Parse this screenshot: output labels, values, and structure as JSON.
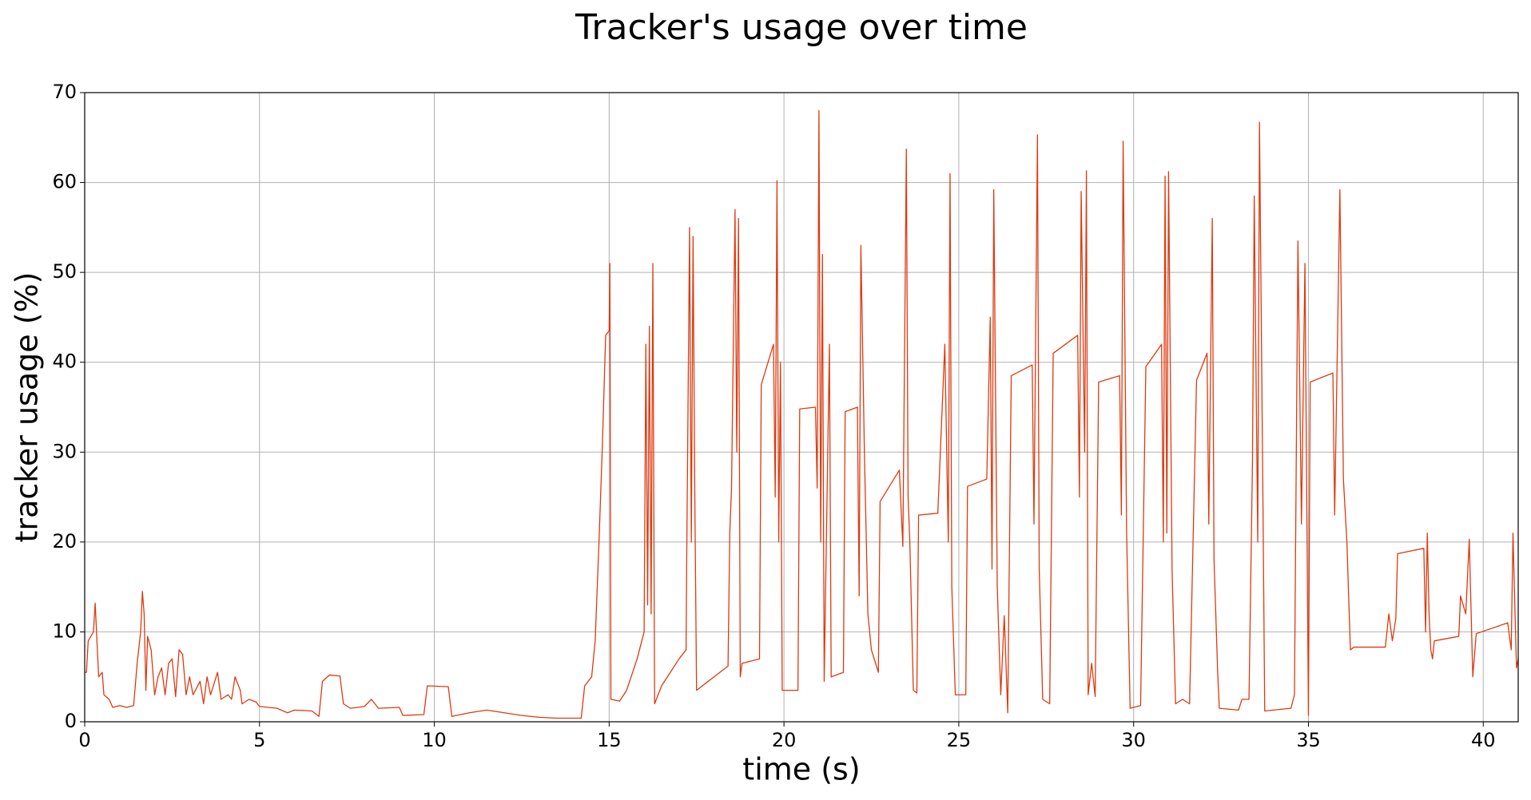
{
  "chart_data": {
    "type": "line",
    "title": "Tracker's usage over time",
    "x_label": "time (s)",
    "y_label": "tracker usage (%)",
    "color": "#dc3a10",
    "grid": true,
    "xlim": [
      0,
      41
    ],
    "ylim": [
      0,
      70
    ],
    "xticks": [
      0,
      5,
      10,
      15,
      20,
      25,
      30,
      35,
      40
    ],
    "yticks": [
      0,
      10,
      20,
      30,
      40,
      50,
      60,
      70
    ],
    "x": [
      0,
      0.05,
      0.1,
      0.25,
      0.3,
      0.35,
      0.4,
      0.5,
      0.55,
      0.7,
      0.8,
      1.0,
      1.2,
      1.4,
      1.5,
      1.6,
      1.65,
      1.7,
      1.75,
      1.8,
      1.9,
      2.0,
      2.1,
      2.2,
      2.3,
      2.4,
      2.5,
      2.6,
      2.7,
      2.8,
      2.9,
      3.0,
      3.1,
      3.3,
      3.4,
      3.5,
      3.6,
      3.8,
      3.9,
      4.1,
      4.2,
      4.3,
      4.45,
      4.5,
      4.7,
      4.9,
      5.0,
      5.5,
      5.8,
      6.0,
      6.5,
      6.7,
      6.8,
      7.0,
      7.3,
      7.4,
      7.6,
      8.0,
      8.2,
      8.4,
      9.0,
      9.1,
      9.7,
      9.8,
      10.4,
      10.5,
      11.0,
      11.5,
      12.0,
      12.5,
      13.0,
      13.5,
      14.2,
      14.3,
      14.5,
      14.6,
      14.7,
      14.8,
      14.9,
      15.0,
      15.02,
      15.05,
      15.3,
      15.5,
      15.8,
      16.0,
      16.05,
      16.1,
      16.15,
      16.2,
      16.25,
      16.3,
      16.5,
      17.0,
      17.2,
      17.22,
      17.3,
      17.35,
      17.4,
      17.45,
      17.5,
      18.0,
      18.4,
      18.45,
      18.5,
      18.6,
      18.65,
      18.7,
      18.75,
      18.8,
      19.3,
      19.35,
      19.7,
      19.75,
      19.8,
      19.85,
      19.9,
      19.95,
      20.4,
      20.45,
      20.9,
      20.95,
      21.0,
      21.05,
      21.1,
      21.15,
      21.3,
      21.35,
      21.7,
      21.75,
      22.1,
      22.15,
      22.2,
      22.3,
      22.4,
      22.5,
      22.7,
      22.75,
      23.3,
      23.4,
      23.5,
      23.55,
      23.6,
      23.7,
      23.8,
      23.85,
      24.4,
      24.6,
      24.7,
      24.75,
      24.8,
      24.9,
      25.2,
      25.25,
      25.8,
      25.9,
      25.95,
      26.0,
      26.1,
      26.2,
      26.3,
      26.4,
      26.5,
      27.1,
      27.15,
      27.25,
      27.3,
      27.4,
      27.6,
      27.7,
      28.4,
      28.45,
      28.5,
      28.6,
      28.65,
      28.7,
      28.8,
      28.9,
      29.0,
      29.6,
      29.65,
      29.7,
      29.8,
      29.9,
      30.2,
      30.35,
      30.8,
      30.85,
      30.9,
      30.95,
      31.0,
      31.1,
      31.2,
      31.4,
      31.6,
      31.8,
      32.1,
      32.15,
      32.25,
      32.3,
      32.4,
      32.45,
      33.0,
      33.1,
      33.3,
      33.4,
      33.45,
      33.55,
      33.6,
      33.7,
      33.75,
      34.5,
      34.6,
      34.7,
      34.8,
      34.9,
      35.0,
      35.05,
      35.7,
      35.75,
      35.9,
      36.0,
      36.1,
      36.2,
      36.3,
      37.2,
      37.3,
      37.4,
      37.5,
      37.55,
      38.3,
      38.35,
      38.4,
      38.45,
      38.5,
      38.55,
      38.6,
      39.3,
      39.35,
      39.5,
      39.6,
      39.7,
      39.8,
      40.7,
      40.8,
      40.85,
      40.95,
      41.0
    ],
    "values": [
      5.5,
      5.5,
      9,
      10,
      13.2,
      9,
      5,
      5.5,
      3,
      2.5,
      1.6,
      1.8,
      1.6,
      1.8,
      6.5,
      10,
      14.5,
      12,
      3.5,
      9.5,
      8,
      3,
      5,
      6,
      3,
      6.5,
      7,
      2.8,
      8,
      7.5,
      3,
      5,
      3,
      4.5,
      2,
      5,
      3,
      5.5,
      2.5,
      3,
      2.5,
      5,
      3.5,
      2,
      2.5,
      2.2,
      1.7,
      1.5,
      1.0,
      1.3,
      1.2,
      0.6,
      4.5,
      5.2,
      5.1,
      2,
      1.5,
      1.7,
      2.5,
      1.5,
      1.6,
      0.7,
      0.8,
      4,
      3.9,
      0.6,
      1.0,
      1.3,
      1.0,
      0.7,
      0.5,
      0.4,
      0.4,
      4,
      5,
      9,
      19,
      30,
      43,
      43.5,
      51,
      2.5,
      2.3,
      3.5,
      7,
      10,
      42,
      13,
      44,
      12,
      51,
      2,
      4,
      7,
      8,
      19,
      55,
      20,
      54,
      25,
      3.5,
      5,
      6.2,
      21,
      26,
      57,
      30,
      56,
      5,
      6.5,
      7,
      37.5,
      42,
      25,
      60.2,
      20,
      40,
      3.5,
      3.5,
      34.8,
      35,
      26,
      68,
      20,
      52,
      4.5,
      42,
      5,
      5.5,
      34.5,
      35,
      14,
      53,
      30,
      12,
      8,
      5.5,
      24.5,
      28,
      19.5,
      63.7,
      25,
      20,
      3.5,
      3.2,
      23,
      23.2,
      42,
      20,
      61,
      15,
      3,
      3,
      26.2,
      27,
      45,
      17,
      59.2,
      15,
      3,
      11.8,
      1,
      38.5,
      39.7,
      22,
      65.3,
      17,
      2.5,
      2,
      41,
      43,
      25,
      59,
      30,
      61.3,
      3,
      6.5,
      2.8,
      37.8,
      38.5,
      23,
      64.6,
      21,
      1.5,
      1.8,
      39.5,
      42,
      20,
      60.7,
      21,
      61.2,
      17,
      2,
      2.5,
      2,
      38,
      41,
      22,
      56,
      18,
      6,
      1.5,
      1.3,
      2.5,
      2.5,
      29,
      58.5,
      20,
      66.7,
      24,
      1.2,
      1.5,
      3,
      53.5,
      22,
      51,
      0.7,
      37.8,
      38.8,
      23,
      59.2,
      27,
      20,
      8,
      8.3,
      8.3,
      12,
      9,
      11.5,
      18.7,
      19.3,
      10,
      21,
      12,
      8,
      7,
      9,
      9.5,
      14,
      12,
      20.3,
      5,
      9.8,
      11,
      8,
      21,
      6,
      7
    ]
  }
}
